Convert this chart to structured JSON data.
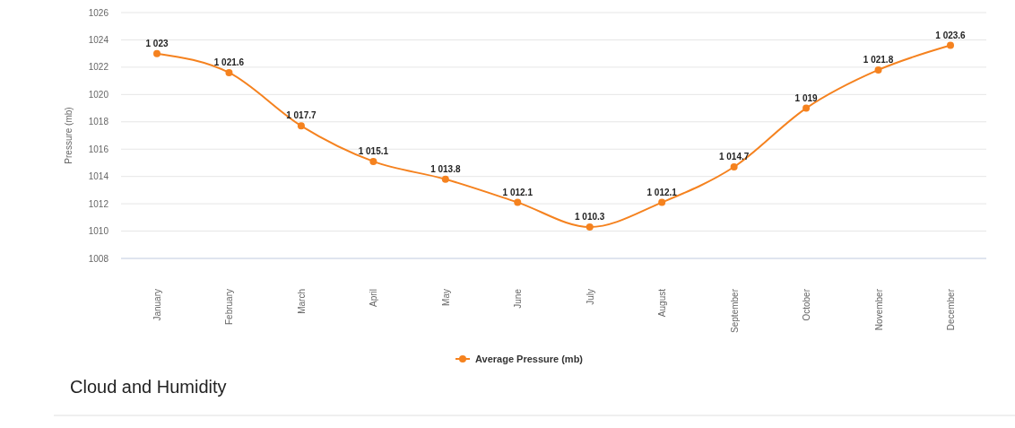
{
  "chart_data": {
    "type": "line",
    "ylabel": "Pressure (mb)",
    "categories": [
      "January",
      "February",
      "March",
      "April",
      "May",
      "June",
      "July",
      "August",
      "September",
      "October",
      "November",
      "December"
    ],
    "series": [
      {
        "name": "Average Pressure (mb)",
        "color": "#f5821f",
        "values": [
          1023,
          1021.6,
          1017.7,
          1015.1,
          1013.8,
          1012.1,
          1010.3,
          1012.1,
          1014.7,
          1019,
          1021.8,
          1023.6
        ],
        "value_labels": [
          "1 023",
          "1 021.6",
          "1 017.7",
          "1 015.1",
          "1 013.8",
          "1 012.1",
          "1 010.3",
          "1 012.1",
          "1 014.7",
          "1 019",
          "1 021.8",
          "1 023.6"
        ]
      }
    ],
    "ylim": [
      1008,
      1026
    ],
    "yticks": [
      1008,
      1010,
      1012,
      1014,
      1016,
      1018,
      1020,
      1022,
      1024,
      1026
    ],
    "grid": "y",
    "legend": "bottom",
    "marker": "circle",
    "annotations": [
      "Cloud and Humidity"
    ]
  }
}
